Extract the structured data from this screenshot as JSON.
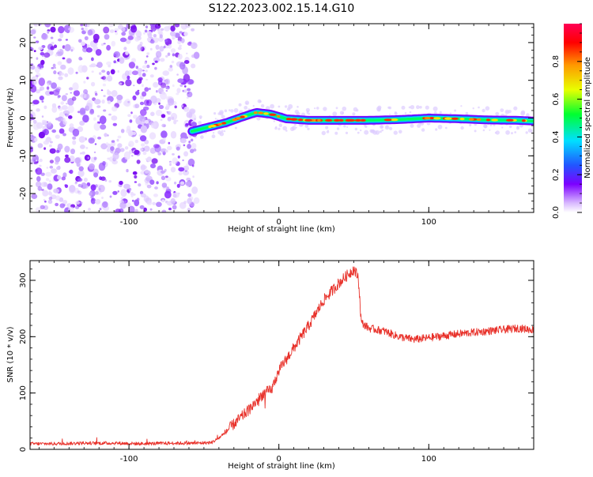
{
  "title": "S122.2023.002.15.14.G10",
  "chart_data": [
    {
      "type": "heatmap",
      "xlabel": "Height of straight line (km)",
      "ylabel": "Frequency (Hz)",
      "xlim": [
        -166,
        170
      ],
      "ylim": [
        -25,
        25
      ],
      "x_ticks": [
        -100,
        0,
        100
      ],
      "y_ticks": [
        -20,
        -10,
        0,
        10,
        20
      ],
      "x_tick_labels": [
        "-100",
        "0",
        "100"
      ],
      "y_tick_labels": [
        "-20",
        "-10",
        "0",
        "10",
        "20"
      ],
      "noise_region": {
        "x_start": -166,
        "x_end": -58
      },
      "signal_track": {
        "x": [
          -58,
          -45,
          -35,
          -25,
          -15,
          -5,
          5,
          20,
          40,
          60,
          80,
          100,
          120,
          140,
          160,
          170
        ],
        "y": [
          -3.5,
          -2.2,
          -1.2,
          0.2,
          1.5,
          1.0,
          -0.2,
          -0.6,
          -0.6,
          -0.6,
          -0.4,
          0.0,
          -0.2,
          -0.5,
          -0.6,
          -0.8
        ]
      },
      "colorbar": {
        "label": "Normalized spectral amplitude",
        "range": [
          0,
          1
        ],
        "tick_labels": [
          "0.0",
          "0.2",
          "0.4",
          "0.6",
          "0.8"
        ],
        "colors": [
          "#ffffff",
          "#7c00ff",
          "#2255ff",
          "#00e0ff",
          "#00ff30",
          "#e8ff00",
          "#ff9900",
          "#ff0000",
          "#ff0055"
        ]
      }
    },
    {
      "type": "line",
      "xlabel": "Height of straight line (km)",
      "ylabel": "SNR (10 * v/v)",
      "xlim": [
        -166,
        170
      ],
      "ylim": [
        0,
        335
      ],
      "x_ticks": [
        -100,
        0,
        100
      ],
      "y_ticks": [
        0,
        100,
        200,
        300
      ],
      "x_tick_labels": [
        "-100",
        "0",
        "100"
      ],
      "y_tick_labels": [
        "0",
        "100",
        "200",
        "300"
      ],
      "color": "#e8312a",
      "series": [
        {
          "x": [
            -166,
            -150,
            -130,
            -110,
            -90,
            -70,
            -55,
            -45,
            -40,
            -30,
            -20,
            -10,
            -5,
            0,
            10,
            20,
            30,
            40,
            50,
            53,
            55,
            60,
            70,
            80,
            90,
            100,
            120,
            140,
            160,
            170
          ],
          "values": [
            10,
            10,
            11,
            11,
            10,
            11,
            11,
            12,
            20,
            45,
            70,
            100,
            105,
            140,
            180,
            220,
            265,
            295,
            320,
            305,
            225,
            215,
            210,
            200,
            195,
            198,
            205,
            210,
            215,
            212
          ]
        }
      ]
    }
  ]
}
